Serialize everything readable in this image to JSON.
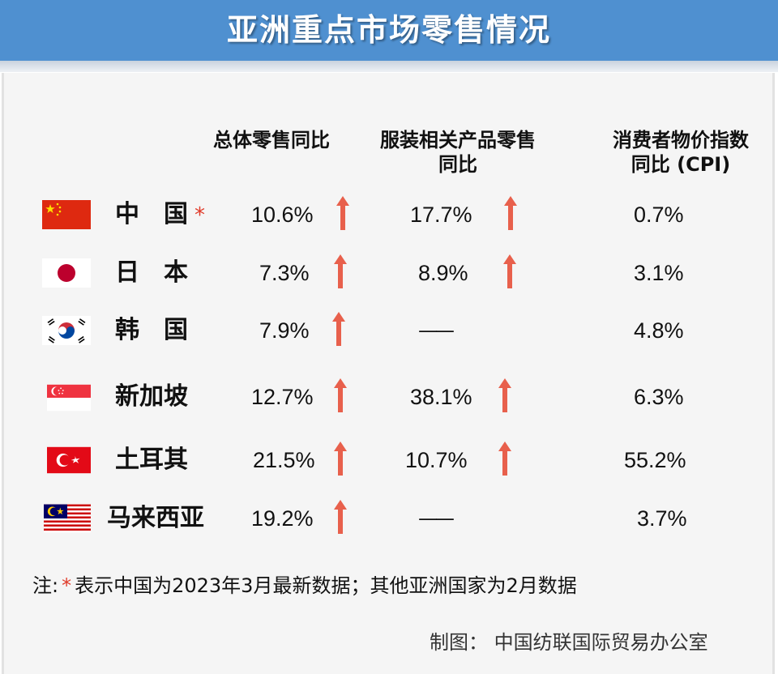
{
  "title": "亚洲重点市场零售情况",
  "headers": {
    "total": "总体零售同比",
    "apparel_line1": "服装相关产品零售",
    "apparel_line2": "同比",
    "cpi_line1": "消费者物价指数",
    "cpi_line2": "同比 (CPI)"
  },
  "colors": {
    "banner": "#4f90d0",
    "arrow": "#e8604c",
    "star": "#e03b2a"
  },
  "rows": [
    {
      "country": "中　国",
      "star": "*",
      "flag": "china-flag-icon",
      "total": "10.6%",
      "total_up": true,
      "apparel": "17.7%",
      "apparel_up": true,
      "cpi": "0.7%"
    },
    {
      "country": "日　本",
      "flag": "japan-flag-icon",
      "total": "7.3%",
      "total_up": true,
      "apparel": "8.9%",
      "apparel_up": true,
      "cpi": "3.1%"
    },
    {
      "country": "韩　国",
      "flag": "korea-flag-icon",
      "total": "7.9%",
      "total_up": true,
      "apparel": "——",
      "apparel_up": false,
      "cpi": "4.8%"
    },
    {
      "country": "新加坡",
      "flag": "singapore-flag-icon",
      "total": "12.7%",
      "total_up": true,
      "apparel": "38.1%",
      "apparel_up": true,
      "cpi": "6.3%"
    },
    {
      "country": "土耳其",
      "flag": "turkey-flag-icon",
      "total": "21.5%",
      "total_up": true,
      "apparel": "10.7%",
      "apparel_up": true,
      "cpi": "55.2%"
    },
    {
      "country": "马来西亚",
      "flag": "malaysia-flag-icon",
      "total": "19.2%",
      "total_up": true,
      "apparel": "——",
      "apparel_up": false,
      "cpi": "3.7%"
    }
  ],
  "note": {
    "prefix": "注:",
    "star": "*",
    "text": "表示中国为2023年3月最新数据；其他亚洲国家为2月数据"
  },
  "credit": "制图：  中国纺联国际贸易办公室"
}
